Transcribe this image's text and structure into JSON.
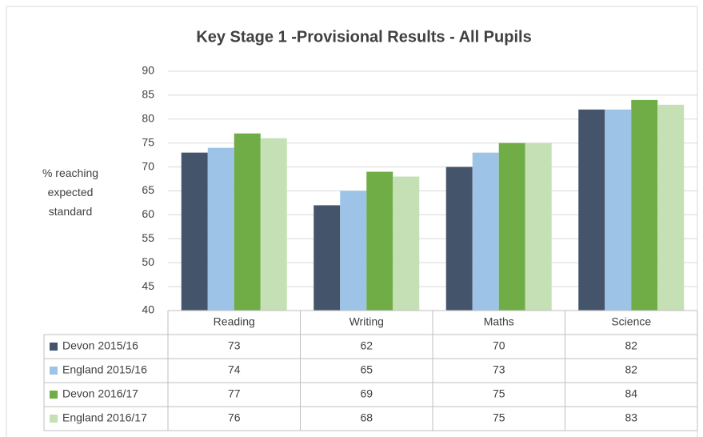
{
  "chart_data": {
    "type": "bar",
    "title": "Key Stage 1 -Provisional Results - All Pupils",
    "ylabel": "% reaching expected standard",
    "categories": [
      "Reading",
      "Writing",
      "Maths",
      "Science"
    ],
    "series": [
      {
        "name": "Devon 2015/16",
        "color": "#44546a",
        "values": [
          73,
          62,
          70,
          82
        ]
      },
      {
        "name": "England 2015/16",
        "color": "#9dc3e6",
        "values": [
          74,
          65,
          73,
          82
        ]
      },
      {
        "name": "Devon 2016/17",
        "color": "#70ad47",
        "values": [
          77,
          69,
          75,
          84
        ]
      },
      {
        "name": "England 2016/17",
        "color": "#c5e0b4",
        "values": [
          76,
          68,
          75,
          83
        ]
      }
    ],
    "ylim": [
      40,
      90
    ],
    "yticks": [
      40,
      45,
      50,
      55,
      60,
      65,
      70,
      75,
      80,
      85,
      90
    ],
    "grid": true
  }
}
